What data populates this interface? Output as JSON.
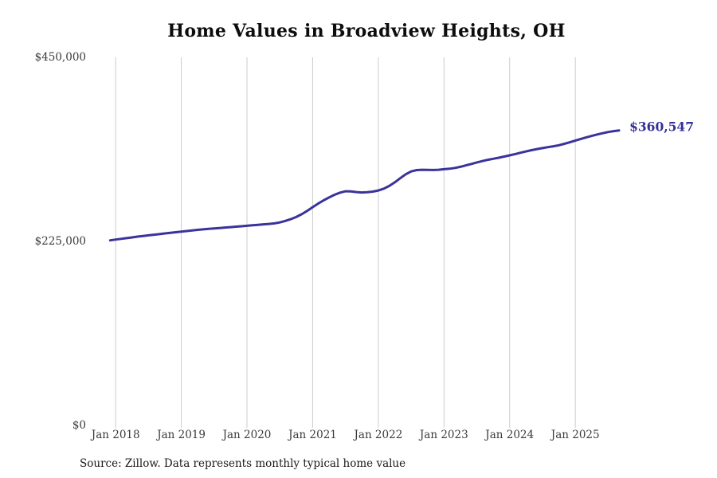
{
  "page": {
    "source_note": "Source: Zillow. Data represents monthly typical home value"
  },
  "chart_data": {
    "type": "line",
    "title": "Home Values in Broadview Heights, OH",
    "ylabel": "",
    "xlabel": "",
    "unit": "USD",
    "legend": "none",
    "grid": "vertical-only",
    "grid_color": "#cccccc",
    "line_color": "#3a339c",
    "end_label": "$360,547",
    "end_value": 360547,
    "ylim": [
      0,
      450000
    ],
    "y_ticks": [
      {
        "label": "$450,000",
        "value": 450000
      },
      {
        "label": "$225,000",
        "value": 225000
      },
      {
        "label": "$0",
        "value": 0
      }
    ],
    "x_tick_labels": [
      "Jan 2018",
      "Jan 2019",
      "Jan 2020",
      "Jan 2021",
      "Jan 2022",
      "Jan 2023",
      "Jan 2024",
      "Jan 2025"
    ],
    "x_tick_month_indices": [
      1,
      13,
      25,
      37,
      49,
      61,
      73,
      85
    ],
    "start_month": "Dec 2017",
    "end_month": "Sep 2025",
    "values": [
      226300,
      227200,
      228100,
      229000,
      229900,
      230800,
      231600,
      232400,
      233200,
      233900,
      234700,
      235400,
      236200,
      237000,
      237700,
      238400,
      239100,
      239700,
      240300,
      240900,
      241400,
      241900,
      242400,
      243000,
      243500,
      244100,
      244700,
      245300,
      245800,
      246300,
      247000,
      248200,
      250000,
      252200,
      254800,
      258200,
      262300,
      266900,
      271200,
      275200,
      278800,
      282000,
      284600,
      286300,
      286100,
      285300,
      284800,
      285100,
      285900,
      287200,
      289500,
      292800,
      297200,
      302200,
      307000,
      310500,
      312200,
      312600,
      312400,
      312300,
      312600,
      313200,
      313800,
      314800,
      316200,
      317900,
      319700,
      321500,
      323200,
      324700,
      326000,
      327300,
      328700,
      330200,
      331800,
      333400,
      335000,
      336500,
      337900,
      339100,
      340200,
      341300,
      342600,
      344300,
      346200,
      348300,
      350300,
      352200,
      354000,
      355700,
      357300,
      358700,
      359800,
      360547
    ]
  }
}
